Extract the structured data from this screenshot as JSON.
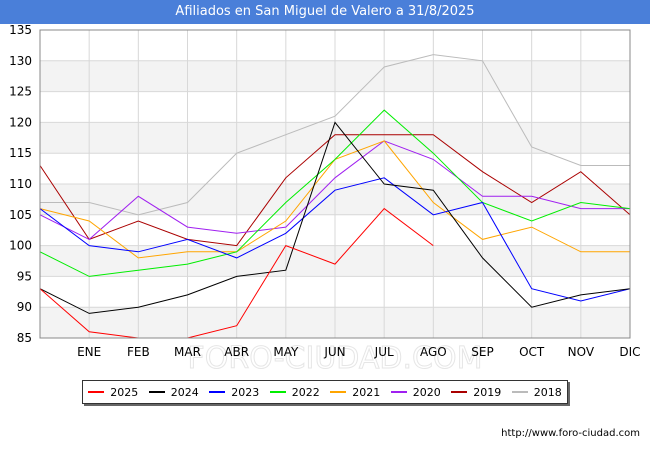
{
  "chart_data": {
    "type": "line",
    "title": "Afiliados en San Miguel de Valero a 31/8/2025",
    "categories": [
      "",
      "ENE",
      "FEB",
      "MAR",
      "ABR",
      "MAY",
      "JUN",
      "JUL",
      "AGO",
      "SEP",
      "OCT",
      "NOV",
      "DIC"
    ],
    "ylim": [
      85,
      135
    ],
    "yticks": [
      85,
      90,
      95,
      100,
      105,
      110,
      115,
      120,
      125,
      130,
      135
    ],
    "grid": true,
    "series": [
      {
        "name": "2025",
        "color": "#ff0000",
        "values": [
          93,
          86,
          85,
          85,
          87,
          100,
          97,
          106,
          100,
          null,
          null,
          null,
          null
        ]
      },
      {
        "name": "2024",
        "color": "#000000",
        "values": [
          93,
          89,
          90,
          92,
          95,
          96,
          120,
          110,
          109,
          98,
          90,
          92,
          93
        ]
      },
      {
        "name": "2023",
        "color": "#0000ff",
        "values": [
          106,
          100,
          99,
          101,
          98,
          102,
          109,
          111,
          105,
          107,
          93,
          91,
          93
        ]
      },
      {
        "name": "2022",
        "color": "#00ee00",
        "values": [
          99,
          95,
          96,
          97,
          99,
          107,
          114,
          122,
          115,
          107,
          104,
          107,
          106
        ]
      },
      {
        "name": "2021",
        "color": "#ffa500",
        "values": [
          106,
          104,
          98,
          99,
          99,
          104,
          114,
          117,
          107,
          101,
          103,
          99,
          99
        ]
      },
      {
        "name": "2020",
        "color": "#a020f0",
        "values": [
          105,
          101,
          108,
          103,
          102,
          103,
          111,
          117,
          114,
          108,
          108,
          106,
          106
        ]
      },
      {
        "name": "2019",
        "color": "#aa0000",
        "values": [
          113,
          101,
          104,
          101,
          100,
          111,
          118,
          118,
          118,
          112,
          107,
          112,
          105
        ]
      },
      {
        "name": "2018",
        "color": "#bbbbbb",
        "values": [
          107,
          107,
          105,
          107,
          115,
          118,
          121,
          129,
          131,
          130,
          116,
          113,
          113
        ]
      }
    ]
  },
  "header": {
    "title": "Afiliados en San Miguel de Valero a 31/8/2025"
  },
  "watermark": "FORO-CIUDAD.COM",
  "footer": {
    "url": "http://www.foro-ciudad.com"
  }
}
